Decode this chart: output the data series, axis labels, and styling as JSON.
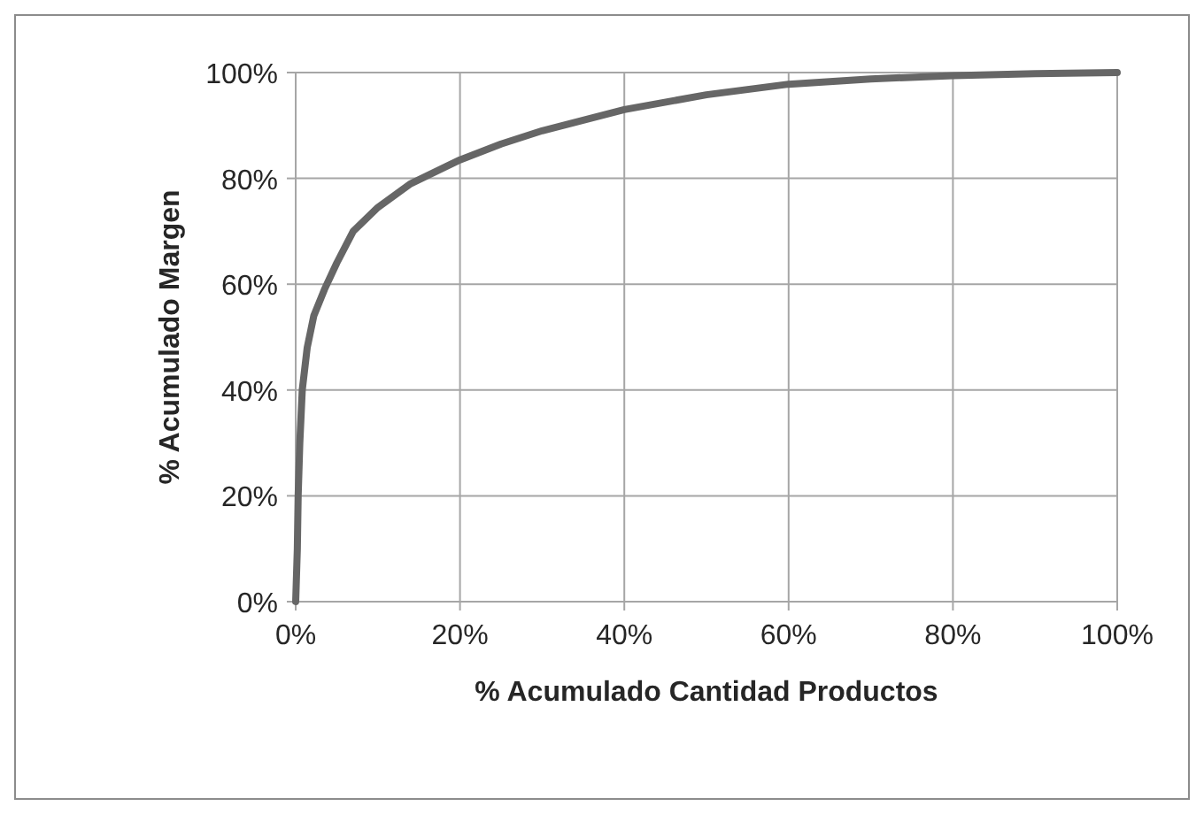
{
  "chart_data": {
    "type": "line",
    "xlabel": "% Acumulado Cantidad Productos",
    "ylabel": "% Acumulado Margen",
    "x": [
      0,
      0.2,
      0.3,
      0.5,
      0.8,
      1.4,
      2.2,
      3.5,
      5,
      7,
      10,
      14,
      20,
      25,
      30,
      40,
      50,
      60,
      70,
      80,
      90,
      100
    ],
    "series": [
      {
        "color": "#666666",
        "values": [
          0,
          10,
          20,
          30,
          40,
          48,
          54,
          59,
          64,
          70,
          74.5,
          79,
          83.5,
          86.5,
          89,
          93,
          95.8,
          97.8,
          98.8,
          99.4,
          99.8,
          100
        ]
      }
    ],
    "xlim": [
      0,
      100
    ],
    "ylim": [
      0,
      100
    ],
    "xticks": [
      {
        "value": 0,
        "label": "0%"
      },
      {
        "value": 20,
        "label": "20%"
      },
      {
        "value": 40,
        "label": "40%"
      },
      {
        "value": 60,
        "label": "60%"
      },
      {
        "value": 80,
        "label": "80%"
      },
      {
        "value": 100,
        "label": "100%"
      }
    ],
    "yticks": [
      {
        "value": 0,
        "label": "0%"
      },
      {
        "value": 20,
        "label": "20%"
      },
      {
        "value": 40,
        "label": "40%"
      },
      {
        "value": 60,
        "label": "60%"
      },
      {
        "value": 80,
        "label": "80%"
      },
      {
        "value": 100,
        "label": "100%"
      }
    ],
    "grid": true,
    "marker": "none",
    "line_style": "solid"
  }
}
